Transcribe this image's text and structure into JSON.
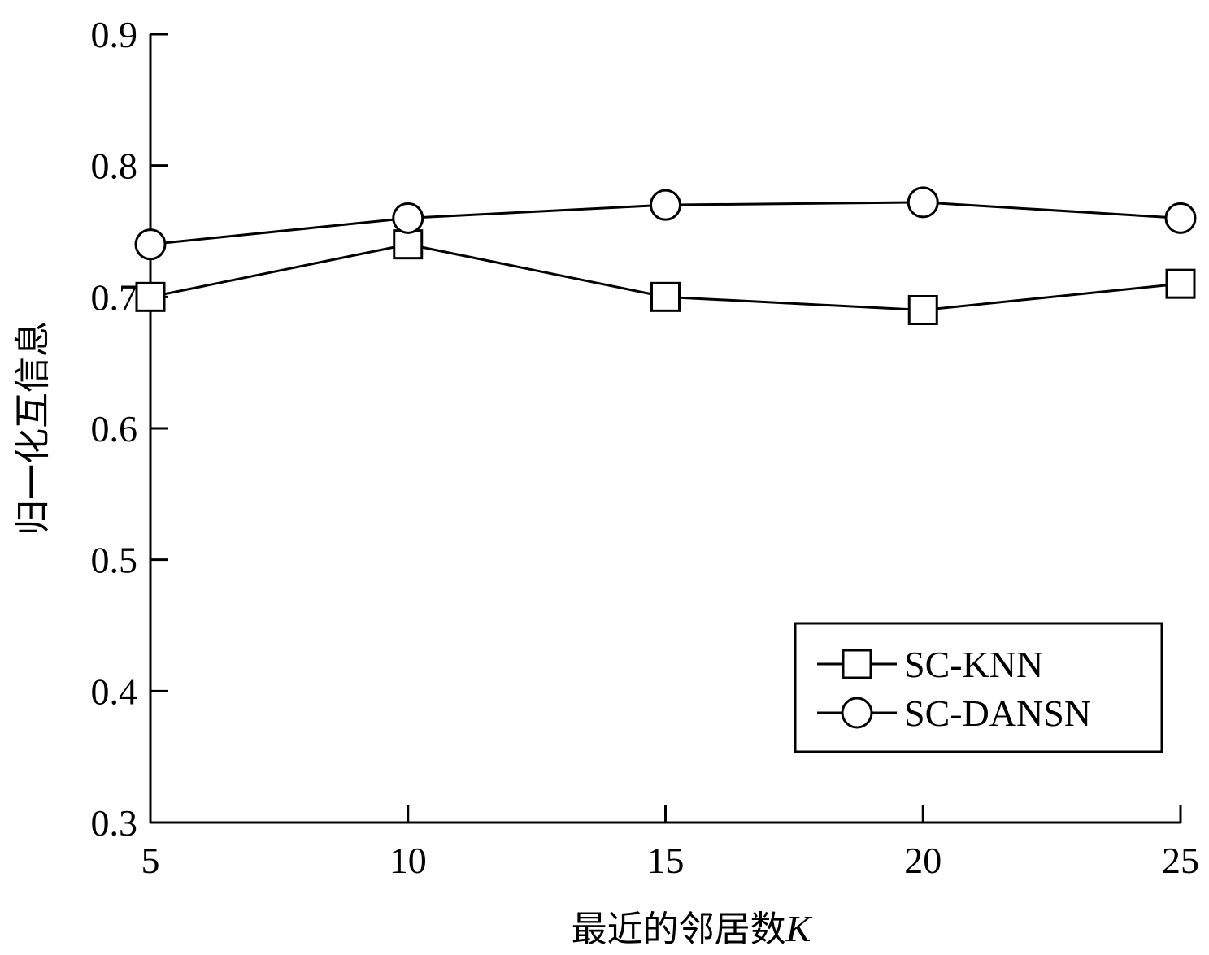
{
  "chart_data": {
    "type": "line",
    "xlabel": "最近的邻居数",
    "xlabel_var": "K",
    "ylabel": "归一化互信息",
    "x": [
      5,
      10,
      15,
      20,
      25
    ],
    "x_ticks": [
      "5",
      "10",
      "15",
      "20",
      "25"
    ],
    "y_ticks": [
      "0.3",
      "0.4",
      "0.5",
      "0.6",
      "0.7",
      "0.8",
      "0.9"
    ],
    "xlim": [
      5,
      25
    ],
    "ylim": [
      0.3,
      0.9
    ],
    "grid": false,
    "legend_position": "bottom-right",
    "series": [
      {
        "name": "SC-KNN",
        "marker": "square",
        "values": [
          0.7,
          0.74,
          0.7,
          0.69,
          0.71
        ]
      },
      {
        "name": "SC-DANSN",
        "marker": "circle",
        "values": [
          0.74,
          0.76,
          0.77,
          0.772,
          0.76
        ]
      }
    ],
    "line_color": "#000000"
  }
}
